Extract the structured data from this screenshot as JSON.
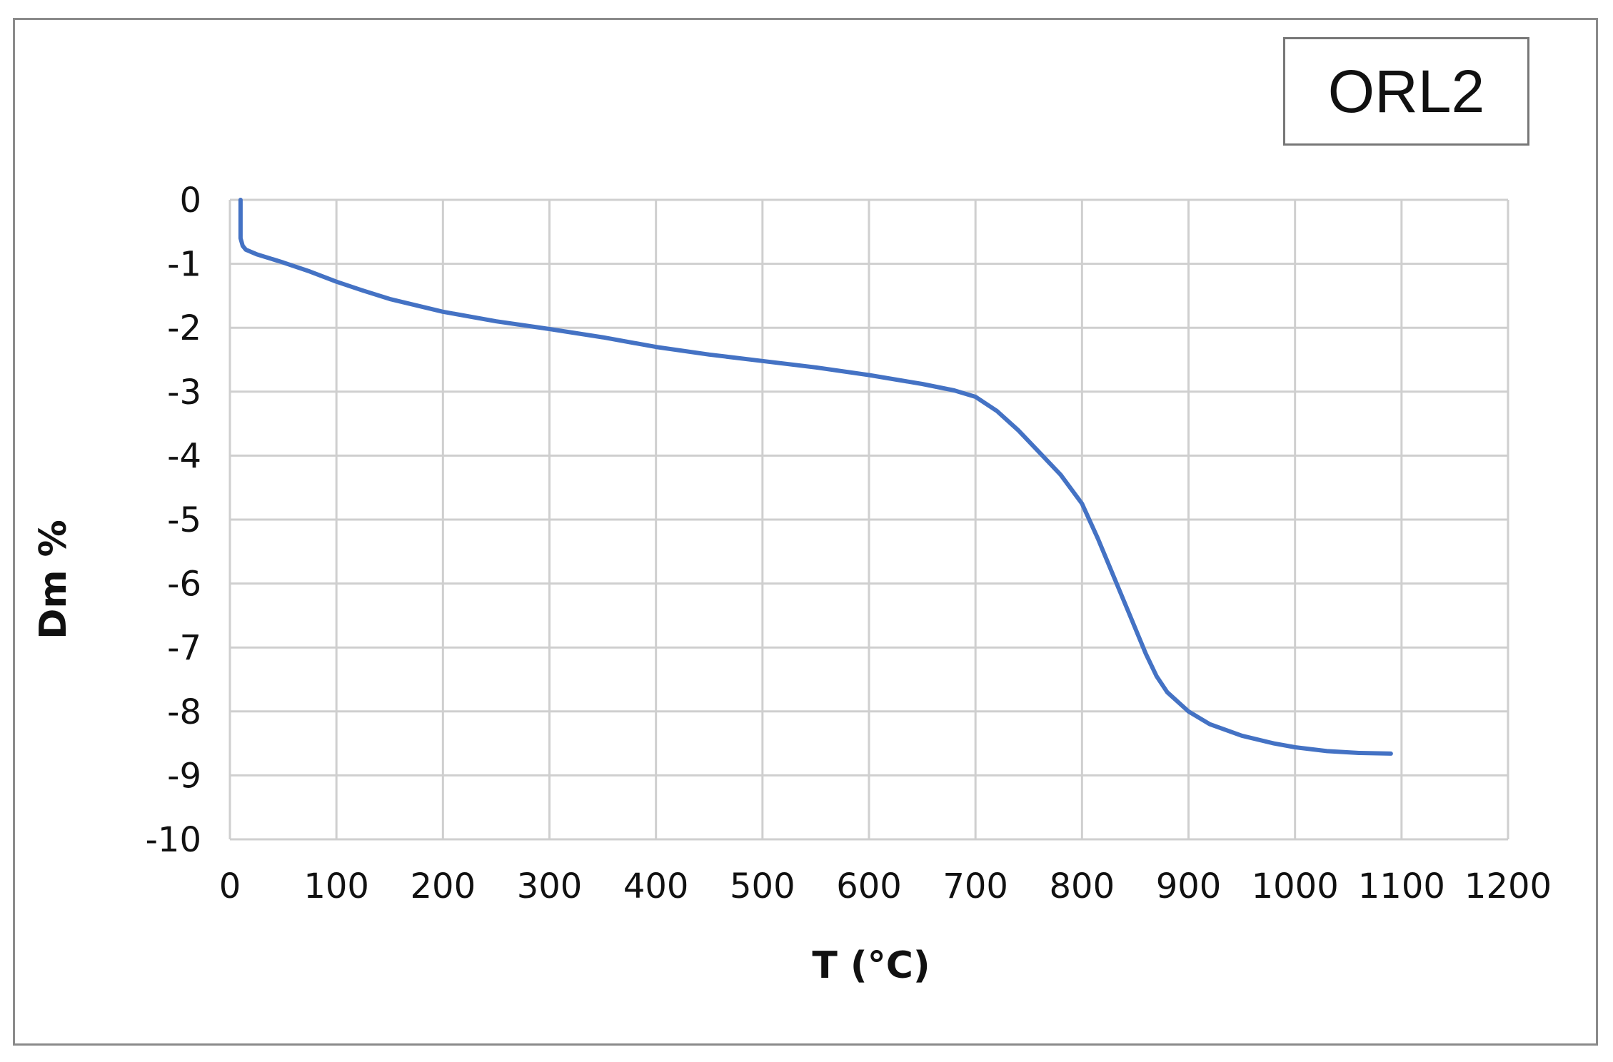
{
  "chart_data": {
    "type": "line",
    "title": "ORL2",
    "xlabel": "T (°C)",
    "ylabel": "Dm %",
    "xlim": [
      0,
      1200
    ],
    "ylim": [
      -10,
      0
    ],
    "grid": true,
    "x_ticks": [
      "0",
      "100",
      "200",
      "300",
      "400",
      "500",
      "600",
      "700",
      "800",
      "900",
      "1000",
      "1100",
      "1200"
    ],
    "y_ticks": [
      "0",
      "-1",
      "-2",
      "-3",
      "-4",
      "-5",
      "-6",
      "-7",
      "-8",
      "-9",
      "-10"
    ],
    "series": [
      {
        "color": "#4472c4",
        "x": [
          10,
          10,
          10,
          12,
          15,
          25,
          50,
          75,
          100,
          125,
          150,
          200,
          250,
          300,
          350,
          400,
          450,
          500,
          550,
          600,
          650,
          680,
          700,
          720,
          740,
          760,
          780,
          800,
          815,
          830,
          845,
          860,
          870,
          880,
          900,
          920,
          950,
          980,
          1000,
          1030,
          1060,
          1090
        ],
        "y": [
          0,
          -0.35,
          -0.6,
          -0.72,
          -0.78,
          -0.85,
          -0.98,
          -1.12,
          -1.28,
          -1.42,
          -1.55,
          -1.75,
          -1.9,
          -2.02,
          -2.15,
          -2.3,
          -2.42,
          -2.52,
          -2.62,
          -2.74,
          -2.88,
          -2.98,
          -3.08,
          -3.3,
          -3.6,
          -3.95,
          -4.3,
          -4.75,
          -5.3,
          -5.9,
          -6.5,
          -7.1,
          -7.45,
          -7.7,
          -8.0,
          -8.2,
          -8.38,
          -8.5,
          -8.56,
          -8.62,
          -8.65,
          -8.66
        ]
      }
    ]
  }
}
